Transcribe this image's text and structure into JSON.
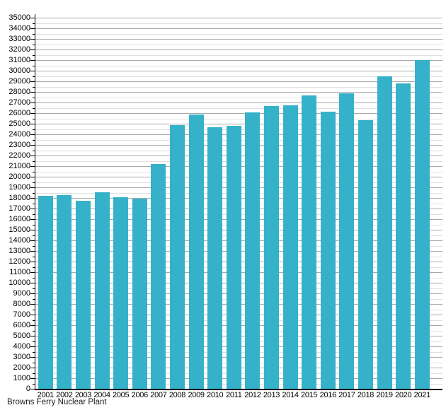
{
  "chart_data": {
    "type": "bar",
    "title": "",
    "footer": "Browns Ferry Nuclear Plant",
    "xlabel": "",
    "ylabel": "",
    "categories": [
      "2001",
      "2002",
      "2003",
      "2004",
      "2005",
      "2006",
      "2007",
      "2008",
      "2009",
      "2010",
      "2011",
      "2012",
      "2013",
      "2014",
      "2015",
      "2016",
      "2017",
      "2018",
      "2019",
      "2020",
      "2021"
    ],
    "values": [
      18200,
      18250,
      17750,
      18550,
      18050,
      17950,
      21200,
      24850,
      25850,
      24700,
      24800,
      26100,
      26650,
      26750,
      27700,
      26150,
      27900,
      25350,
      29500,
      28800,
      31000
    ],
    "ylim": [
      0,
      35000
    ],
    "y_major_step": 1000,
    "y_minor_step": 500,
    "grid": true,
    "legend": "none",
    "colors": {
      "bar": "#35b2c9",
      "axis": "#000000",
      "major_grid": "#a8a8a8",
      "minor_grid": "#e0e0e0",
      "label_text": "#000000"
    }
  }
}
